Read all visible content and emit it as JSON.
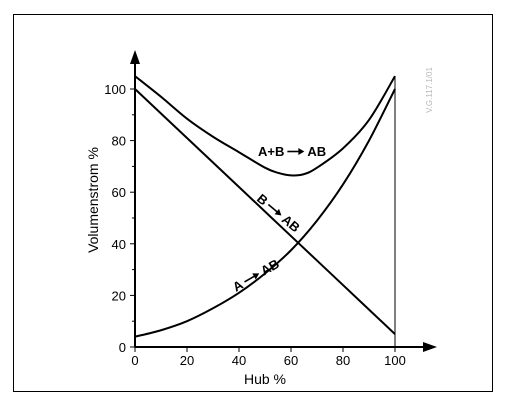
{
  "chart_data": {
    "type": "line",
    "title": "",
    "xlabel": "Hub %",
    "ylabel": "Volumenstrom %",
    "xlim": [
      0,
      100
    ],
    "ylim": [
      0,
      105
    ],
    "x_ticks": [
      0,
      20,
      40,
      60,
      80,
      100
    ],
    "y_ticks": [
      0,
      20,
      40,
      60,
      80,
      100
    ],
    "grid": false,
    "legend": "none",
    "annotation": "V.G.117.1/01",
    "series": [
      {
        "name": "A+B→AB",
        "label_parts": {
          "left": "A+B",
          "right": "AB"
        },
        "x": [
          0,
          10,
          20,
          30,
          40,
          50,
          55,
          60,
          65,
          70,
          80,
          90,
          100
        ],
        "y": [
          105,
          97,
          88.5,
          81.5,
          75.5,
          69.5,
          67.5,
          66.5,
          67,
          69.5,
          77,
          88,
          105
        ]
      },
      {
        "name": "B→AB",
        "label_parts": {
          "left": "B",
          "right": "AB"
        },
        "x": [
          0,
          20,
          40,
          60,
          80,
          100
        ],
        "y": [
          100,
          81,
          62,
          43,
          24,
          5
        ]
      },
      {
        "name": "A→AB",
        "label_parts": {
          "left": "A",
          "right": "AB"
        },
        "x": [
          0,
          10,
          20,
          30,
          40,
          50,
          60,
          70,
          80,
          90,
          100
        ],
        "y": [
          4,
          6.5,
          10,
          15,
          21,
          28.5,
          37.5,
          49,
          63,
          80,
          100
        ]
      }
    ]
  }
}
